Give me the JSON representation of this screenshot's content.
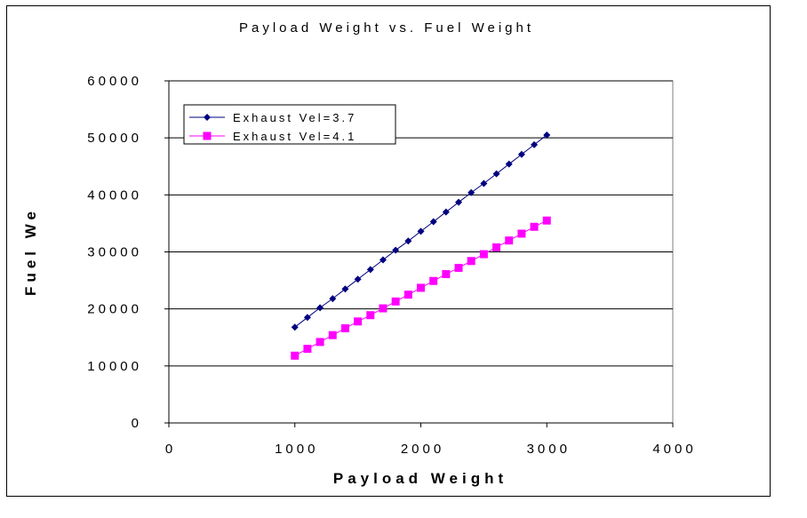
{
  "chart_data": {
    "type": "line",
    "title": "Payload Weight vs. Fuel Weight",
    "xlabel": "Payload Weight",
    "ylabel": "Fuel We",
    "xlim": [
      0,
      4000
    ],
    "ylim": [
      0,
      60000
    ],
    "x_ticks": [
      0,
      1000,
      2000,
      3000,
      4000
    ],
    "x_tick_labels": [
      "0",
      "1000",
      "2000",
      "3000",
      "4000"
    ],
    "y_ticks": [
      0,
      10000,
      20000,
      30000,
      40000,
      50000,
      60000
    ],
    "y_tick_labels": [
      "0",
      "10000",
      "20000",
      "30000",
      "40000",
      "50000",
      "60000"
    ],
    "grid": "horizontal major",
    "legend_position": "top-left inside plot",
    "x": [
      1000,
      1100,
      1200,
      1300,
      1400,
      1500,
      1600,
      1700,
      1800,
      1900,
      2000,
      2100,
      2200,
      2300,
      2400,
      2500,
      2600,
      2700,
      2800,
      2900,
      3000
    ],
    "series": [
      {
        "name": "Exhaust Vel=3.7",
        "color": "#000080",
        "marker": "diamond",
        "values": [
          16800,
          18500,
          20200,
          21800,
          23500,
          25200,
          26900,
          28600,
          30300,
          31900,
          33600,
          35300,
          37000,
          38700,
          40400,
          42000,
          43700,
          45400,
          47100,
          48800,
          50500
        ]
      },
      {
        "name": "Exhaust Vel=4.1",
        "color": "#ff00ff",
        "marker": "square",
        "values": [
          11800,
          13000,
          14200,
          15400,
          16600,
          17800,
          18900,
          20100,
          21300,
          22500,
          23700,
          24900,
          26100,
          27200,
          28400,
          29600,
          30800,
          32000,
          33200,
          34400,
          35500
        ]
      }
    ]
  }
}
